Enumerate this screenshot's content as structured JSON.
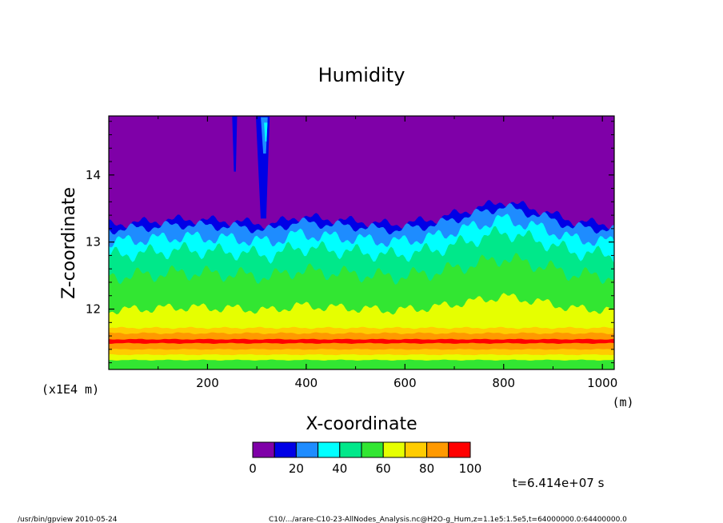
{
  "chart_data": {
    "type": "heatmap",
    "title": "Humidity",
    "xlabel": "X-coordinate",
    "ylabel": "Z-coordinate",
    "x_unit": "(m)",
    "y_unit": "(x1E4 m)",
    "xlim": [
      0,
      1024
    ],
    "ylim": [
      11.1,
      14.88
    ],
    "x_ticks": [
      200,
      400,
      600,
      800,
      1000
    ],
    "x_tick_labels": [
      "200",
      "400",
      "600",
      "800",
      "1000"
    ],
    "y_ticks": [
      12,
      13,
      14
    ],
    "y_tick_labels": [
      "12",
      "13",
      "14"
    ],
    "colorbar": {
      "levels": [
        0,
        10,
        20,
        30,
        40,
        50,
        60,
        70,
        80,
        90,
        100
      ],
      "labels": [
        "0",
        "20",
        "40",
        "60",
        "80",
        "100"
      ],
      "label_values": [
        0,
        20,
        40,
        60,
        80,
        100
      ],
      "colors": [
        "#7f00a8",
        "#0000e6",
        "#1e8cff",
        "#00ffff",
        "#00e88a",
        "#32e632",
        "#e6ff00",
        "#ffcc00",
        "#ff9900",
        "#ff0000",
        "#ff9999"
      ]
    },
    "bands": [
      {
        "name": "fill-purple-top",
        "color": "#7f00a8",
        "base": 14.88,
        "amp": 0,
        "feature": 0
      },
      {
        "name": "band-blue",
        "color": "#0000e6",
        "base": 13.26,
        "amp": 0.05,
        "feature": 1
      },
      {
        "name": "band-light-blue",
        "color": "#1e8cff",
        "base": 13.18,
        "amp": 0.05,
        "feature": 1
      },
      {
        "name": "band-cyan",
        "color": "#00ffff",
        "base": 13.0,
        "amp": 0.07,
        "feature": 1
      },
      {
        "name": "band-sea-green",
        "color": "#00e88a",
        "base": 12.8,
        "amp": 0.08,
        "feature": 1
      },
      {
        "name": "band-green",
        "color": "#32e632",
        "base": 12.48,
        "amp": 0.08,
        "feature": 0.8
      },
      {
        "name": "band-yellow",
        "color": "#e6ff00",
        "base": 11.98,
        "amp": 0.05,
        "feature": 0.6
      },
      {
        "name": "band-gold",
        "color": "#ffcc00",
        "base": 11.72,
        "amp": 0.01,
        "feature": 0
      },
      {
        "name": "band-orange",
        "color": "#ff9900",
        "base": 11.64,
        "amp": 0.01,
        "feature": 0
      },
      {
        "name": "band-red-stripe",
        "color": "#ff0000",
        "base": 11.55,
        "amp": 0.005,
        "feature": 0
      },
      {
        "name": "band-orange-low",
        "color": "#ff9900",
        "base": 11.49,
        "amp": 0.005,
        "feature": 0
      },
      {
        "name": "band-gold-low",
        "color": "#ffcc00",
        "base": 11.4,
        "amp": 0.005,
        "feature": 0
      },
      {
        "name": "band-yellow-low",
        "color": "#e6ff00",
        "base": 11.32,
        "amp": 0.005,
        "feature": 0
      },
      {
        "name": "band-green-bottom",
        "color": "#32e632",
        "base": 11.24,
        "amp": 0.005,
        "feature": 0
      }
    ],
    "ridge": [
      {
        "x": 0,
        "dz": 0
      },
      {
        "x": 150,
        "dz": 0.08
      },
      {
        "x": 250,
        "dz": 0.05
      },
      {
        "x": 330,
        "dz": 0.0
      },
      {
        "x": 380,
        "dz": 0.12
      },
      {
        "x": 500,
        "dz": 0.05
      },
      {
        "x": 580,
        "dz": 0.0
      },
      {
        "x": 660,
        "dz": 0.08
      },
      {
        "x": 800,
        "dz": 0.35
      },
      {
        "x": 880,
        "dz": 0.2
      },
      {
        "x": 940,
        "dz": 0.05
      },
      {
        "x": 1024,
        "dz": 0
      }
    ],
    "plumes": [
      {
        "name": "plume-left",
        "x": 255,
        "width": 10,
        "top": 14.88,
        "bottom": 14.05,
        "color": "#0000e6"
      },
      {
        "name": "plume-main",
        "x": 312,
        "width": 28,
        "top": 14.88,
        "bottom": 13.35,
        "color": "#0000e6"
      },
      {
        "name": "plume-main-core",
        "x": 315,
        "width": 14,
        "top": 14.86,
        "bottom": 14.32,
        "color": "#1e8cff"
      },
      {
        "name": "plume-main-inner",
        "x": 318,
        "width": 7,
        "top": 14.78,
        "bottom": 14.5,
        "color": "#00ffff"
      }
    ],
    "annotations": [
      {
        "name": "time-label",
        "text": "t=6.414e+07 s"
      }
    ]
  },
  "footer": {
    "program": "/usr/bin/gpview  2010-05-24",
    "source": "C10/.../arare-C10-23-AllNodes_Analysis.nc@H2O-g_Hum,z=1.1e5:1.5e5,t=64000000.0:64400000.0"
  }
}
